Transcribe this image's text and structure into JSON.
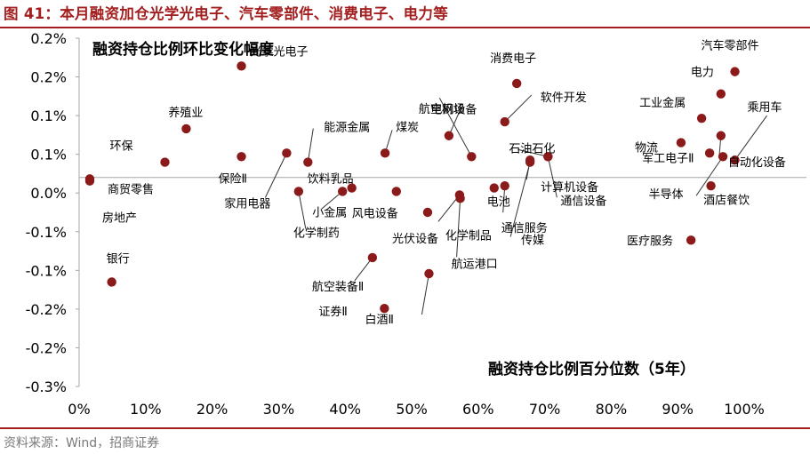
{
  "header": {
    "title": "图 41：本月融资加仓光学光电子、汽车零部件、消费电子、电力等"
  },
  "footer": {
    "source": "资料来源：Wind，招商证券"
  },
  "colors": {
    "accent": "#A31F1F",
    "point": "#8B1A1A",
    "axis": "#a6a6a6",
    "leader": "#333333"
  },
  "chart_data": {
    "type": "scatter",
    "title": "",
    "xlabel": "融资持仓比例百分位数（5年）",
    "ylabel": "融资持仓比例环比变化幅度",
    "xlim": [
      0,
      1
    ],
    "ylim": [
      -0.003,
      0.002
    ],
    "x_ticks": [
      "0%",
      "10%",
      "20%",
      "30%",
      "40%",
      "50%",
      "60%",
      "70%",
      "80%",
      "90%",
      "100%"
    ],
    "y_ticks": [
      "0.2%",
      "0.2%",
      "0.1%",
      "0.1%",
      "0.0%",
      "-0.1%",
      "-0.1%",
      "-0.2%",
      "-0.2%",
      "-0.3%"
    ],
    "grid": false,
    "points": [
      {
        "label": "商贸零售",
        "x": 0.016,
        "y": -2e-05
      },
      {
        "label": "房地产",
        "x": 0.016,
        "y": -5e-05
      },
      {
        "label": "银行",
        "x": 0.049,
        "y": -0.0015
      },
      {
        "label": "环保",
        "x": 0.129,
        "y": 0.00022
      },
      {
        "label": "养殖业",
        "x": 0.161,
        "y": 0.0007
      },
      {
        "label": "光学光电子",
        "x": 0.244,
        "y": 0.0016
      },
      {
        "label": "保险Ⅱ",
        "x": 0.244,
        "y": 0.0003
      },
      {
        "label": "家用电器",
        "x": 0.312,
        "y": 0.00035
      },
      {
        "label": "化学制药",
        "x": 0.33,
        "y": -0.0002
      },
      {
        "label": "能源金属",
        "x": 0.344,
        "y": 0.00022
      },
      {
        "label": "小金属",
        "x": 0.396,
        "y": -0.0002
      },
      {
        "label": "饮料乳品",
        "x": 0.41,
        "y": -0.00015
      },
      {
        "label": "航空装备Ⅱ",
        "x": 0.441,
        "y": -0.00115
      },
      {
        "label": "煤炭",
        "x": 0.46,
        "y": 0.00035
      },
      {
        "label": "风电设备",
        "x": 0.477,
        "y": -0.0002
      },
      {
        "label": "证券Ⅱ",
        "x": 0.459,
        "y": -0.00188
      },
      {
        "label": "白酒Ⅱ",
        "x": 0.526,
        "y": -0.00138
      },
      {
        "label": "光伏设备",
        "x": 0.524,
        "y": -0.0005
      },
      {
        "label": "航空机场",
        "x": 0.556,
        "y": 0.0006
      },
      {
        "label": "化学制品",
        "x": 0.572,
        "y": -0.00025
      },
      {
        "label": "航运港口",
        "x": 0.573,
        "y": -0.0003
      },
      {
        "label": "电网设备",
        "x": 0.59,
        "y": 0.0003
      },
      {
        "label": "电池",
        "x": 0.624,
        "y": -0.00015
      },
      {
        "label": "通信服务",
        "x": 0.64,
        "y": -0.00012
      },
      {
        "label": "消费电子",
        "x": 0.658,
        "y": 0.00135
      },
      {
        "label": "软件开发",
        "x": 0.64,
        "y": 0.0008
      },
      {
        "label": "传媒",
        "x": 0.678,
        "y": 0.00022
      },
      {
        "label": "计算机设备",
        "x": 0.678,
        "y": 0.00025
      },
      {
        "label": "石油石化",
        "x": 0.705,
        "y": 0.0003
      },
      {
        "label": "通信设备",
        "x": 0.705,
        "y": 0.0003
      },
      {
        "label": "物流",
        "x": 0.905,
        "y": 0.0005
      },
      {
        "label": "医疗服务",
        "x": 0.92,
        "y": -0.0009
      },
      {
        "label": "工业金属",
        "x": 0.936,
        "y": 0.00085
      },
      {
        "label": "军工电子Ⅱ",
        "x": 0.948,
        "y": 0.00035
      },
      {
        "label": "半导体",
        "x": 0.95,
        "y": -0.00012
      },
      {
        "label": "电力",
        "x": 0.965,
        "y": 0.0012
      },
      {
        "label": "自动化设备",
        "x": 0.965,
        "y": 0.0006
      },
      {
        "label": "酒店餐饮",
        "x": 0.968,
        "y": 0.0003
      },
      {
        "label": "汽车零部件",
        "x": 0.986,
        "y": 0.00152
      },
      {
        "label": "乘用车",
        "x": 0.986,
        "y": 0.00025
      }
    ]
  }
}
